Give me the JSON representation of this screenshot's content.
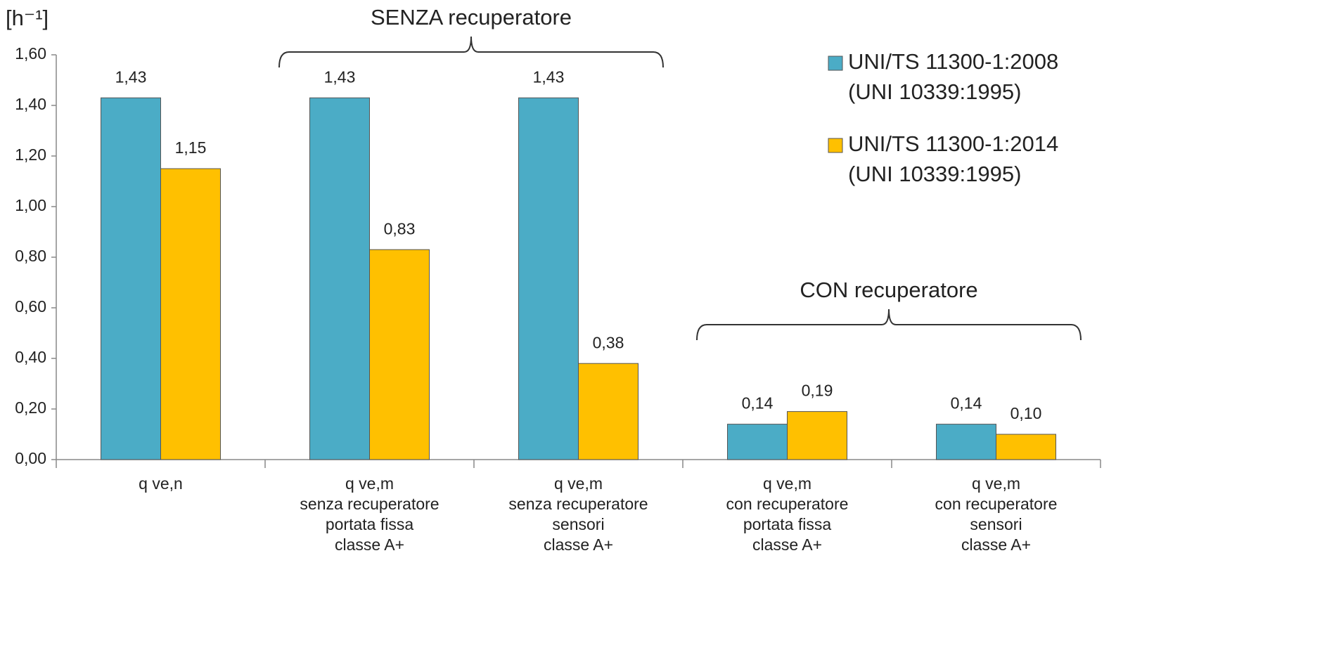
{
  "chart_data": {
    "type": "bar",
    "y_label": "[h⁻¹]",
    "annotations": [
      "SENZA recuperatore",
      "CON recuperatore"
    ],
    "categories": [
      "q ve,n",
      "q ve,m\nsenza recuperatore\nportata fissa\nclasse A+",
      "q ve,m\nsenza recuperatore\nsensori\nclasse A+",
      "q ve,m\ncon recuperatore\nportata fissa\nclasse A+",
      "q ve,m\ncon recuperatore\nsensori\nclasse A+"
    ],
    "series": [
      {
        "name": "UNI/TS 11300-1:2008\n(UNI 10339:1995)",
        "color": "#4bacc6",
        "values": [
          1.43,
          1.43,
          1.43,
          0.14,
          0.14
        ],
        "value_labels": [
          "1,43",
          "1,43",
          "1,43",
          "0,14",
          "0,14"
        ]
      },
      {
        "name": "UNI/TS 11300-1:2014\n(UNI 10339:1995)",
        "color": "#ffc000",
        "values": [
          1.15,
          0.83,
          0.38,
          0.19,
          0.1
        ],
        "value_labels": [
          "1,15",
          "0,83",
          "0,38",
          "0,19",
          "0,10"
        ]
      }
    ],
    "ylim": [
      0,
      1.6
    ],
    "yticks": [
      {
        "value": 0,
        "label": "0,00"
      },
      {
        "value": 0.2,
        "label": "0,20"
      },
      {
        "value": 0.4,
        "label": "0,40"
      },
      {
        "value": 0.6,
        "label": "0,60"
      },
      {
        "value": 0.8,
        "label": "0,80"
      },
      {
        "value": 1.0,
        "label": "1,00"
      },
      {
        "value": 1.2,
        "label": "1,20"
      },
      {
        "value": 1.4,
        "label": "1,40"
      },
      {
        "value": 1.6,
        "label": "1,60"
      }
    ],
    "grid": false,
    "legend": "top-right"
  }
}
